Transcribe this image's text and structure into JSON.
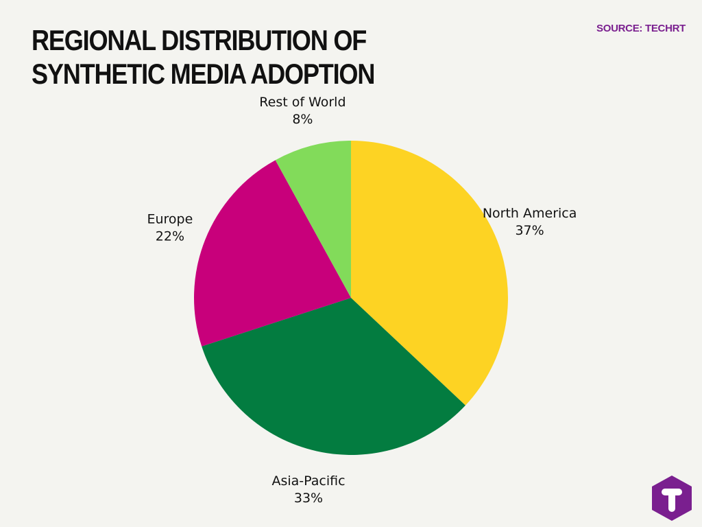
{
  "header": {
    "title": "REGIONAL DISTRIBUTION OF SYNTHETIC MEDIA ADOPTION",
    "source": "SOURCE: TECHRT",
    "source_color": "#7a1f8f"
  },
  "chart_data": {
    "type": "pie",
    "title": "REGIONAL DISTRIBUTION OF SYNTHETIC MEDIA ADOPTION",
    "slices": [
      {
        "label": "North America",
        "value": 37,
        "value_label": "37%",
        "color": "#fdd323"
      },
      {
        "label": "Asia-Pacific",
        "value": 33,
        "value_label": "33%",
        "color": "#037c40"
      },
      {
        "label": "Europe",
        "value": 22,
        "value_label": "22%",
        "color": "#c8007b"
      },
      {
        "label": "Rest of World",
        "value": 8,
        "value_label": "8%",
        "color": "#82db5a"
      }
    ],
    "start_angle": "12 o'clock",
    "direction": "clockwise",
    "legend": "none"
  },
  "logo": {
    "icon": "techrt-logo-icon",
    "letter": "T",
    "color": "#7a1f8f"
  }
}
